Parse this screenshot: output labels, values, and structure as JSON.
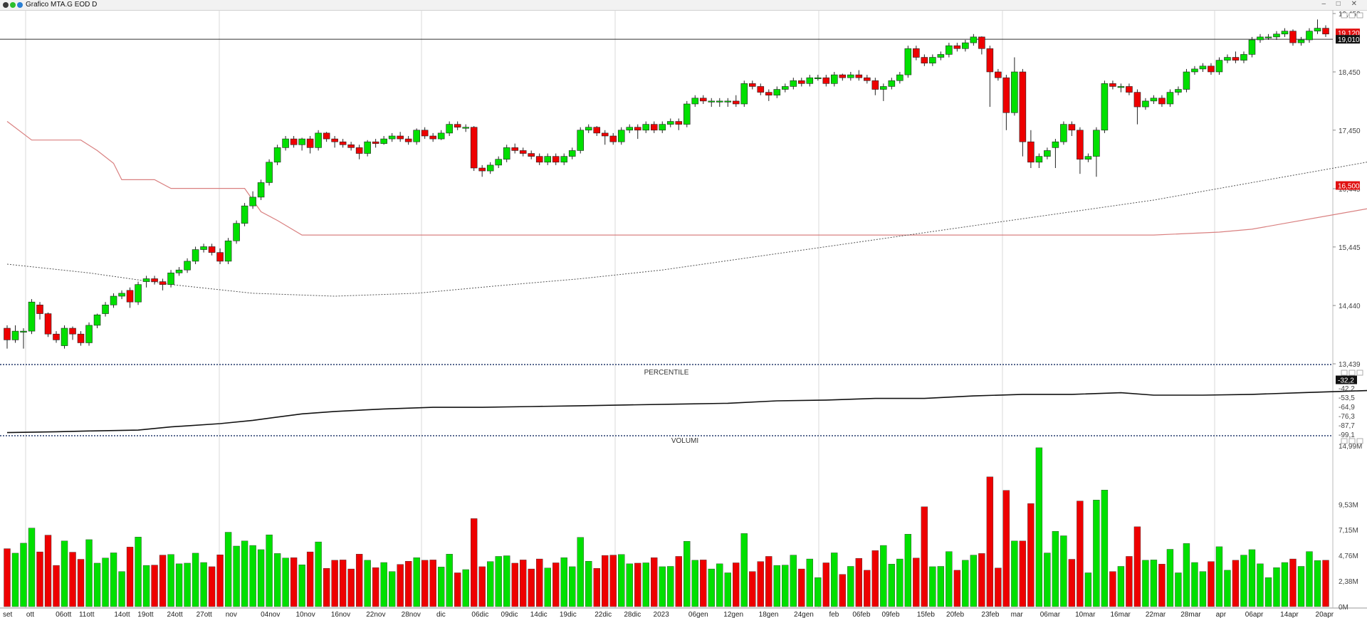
{
  "window": {
    "title": "Grafico MTA.G EOD D",
    "controls": [
      "–",
      "□",
      "✕"
    ]
  },
  "colors": {
    "up": "#00e000",
    "down": "#ee0000",
    "axis_text": "#444444",
    "level_line": "#d98080",
    "avg_line": "#555555"
  },
  "price_axis": {
    "ticks": [
      "19,452",
      "18,450",
      "17,450",
      "16,445",
      "15,445",
      "14,440",
      "13,439"
    ]
  },
  "price_labels": {
    "last": "19,120",
    "ref": "19,010",
    "stop": "16,500"
  },
  "chart_data": [
    {
      "type": "candlestick",
      "ylim": [
        13439,
        19452
      ],
      "x_labels": [
        "set",
        "ott",
        "06ott",
        "11ott",
        "14ott",
        "19ott",
        "24ott",
        "27ott",
        "nov",
        "04nov",
        "10nov",
        "16nov",
        "22nov",
        "28nov",
        "dic",
        "06dic",
        "09dic",
        "14dic",
        "19dic",
        "22dic",
        "28dic",
        "2023",
        "06gen",
        "12gen",
        "18gen",
        "24gen",
        "feb",
        "06feb",
        "09feb",
        "15feb",
        "20feb",
        "23feb",
        "mar",
        "06mar",
        "10mar",
        "16mar",
        "22mar",
        "28mar",
        "apr",
        "06apr",
        "14apr",
        "20apr"
      ],
      "candles": [
        [
          14050,
          13850,
          14100,
          13700
        ],
        [
          13850,
          14000,
          14100,
          13800
        ],
        [
          14000,
          14000,
          14050,
          13700
        ],
        [
          14000,
          14500,
          14550,
          13950
        ],
        [
          14450,
          14300,
          14500,
          14200
        ],
        [
          14300,
          13950,
          14320,
          13900
        ],
        [
          13950,
          13850,
          14000,
          13800
        ],
        [
          13750,
          14050,
          14100,
          13700
        ],
        [
          14050,
          13950,
          14080,
          13850
        ],
        [
          13950,
          13800,
          14000,
          13750
        ],
        [
          13800,
          14100,
          14150,
          13750
        ],
        [
          14100,
          14280,
          14300,
          14050
        ],
        [
          14300,
          14450,
          14500,
          14250
        ],
        [
          14450,
          14600,
          14650,
          14400
        ],
        [
          14600,
          14650,
          14700,
          14550
        ],
        [
          14700,
          14500,
          14750,
          14400
        ],
        [
          14500,
          14800,
          14850,
          14450
        ],
        [
          14850,
          14900,
          14950,
          14750
        ],
        [
          14900,
          14850,
          14950,
          14800
        ],
        [
          14850,
          14800,
          14900,
          14700
        ],
        [
          14800,
          15000,
          15050,
          14750
        ],
        [
          15000,
          15050,
          15100,
          14950
        ],
        [
          15050,
          15200,
          15250,
          15000
        ],
        [
          15200,
          15400,
          15450,
          15150
        ],
        [
          15400,
          15450,
          15500,
          15350
        ],
        [
          15450,
          15350,
          15500,
          15300
        ],
        [
          15350,
          15200,
          15420,
          15150
        ],
        [
          15200,
          15550,
          15600,
          15150
        ],
        [
          15550,
          15850,
          15900,
          15500
        ],
        [
          15850,
          16150,
          16200,
          15800
        ],
        [
          16150,
          16300,
          16400,
          16100
        ],
        [
          16300,
          16550,
          16600,
          16250
        ],
        [
          16550,
          16900,
          16950,
          16500
        ],
        [
          16900,
          17150,
          17200,
          16850
        ],
        [
          17150,
          17300,
          17350,
          17100
        ],
        [
          17300,
          17200,
          17350,
          17150
        ],
        [
          17200,
          17300,
          17320,
          17100
        ],
        [
          17300,
          17150,
          17350,
          17050
        ],
        [
          17150,
          17400,
          17450,
          17100
        ],
        [
          17400,
          17300,
          17420,
          17250
        ],
        [
          17300,
          17250,
          17350,
          17150
        ],
        [
          17250,
          17200,
          17300,
          17150
        ],
        [
          17200,
          17150,
          17250,
          17100
        ],
        [
          17150,
          17050,
          17200,
          16950
        ],
        [
          17050,
          17250,
          17280,
          17000
        ],
        [
          17250,
          17220,
          17300,
          17150
        ],
        [
          17220,
          17300,
          17350,
          17200
        ],
        [
          17300,
          17350,
          17400,
          17250
        ],
        [
          17350,
          17300,
          17420,
          17250
        ],
        [
          17300,
          17250,
          17350,
          17200
        ],
        [
          17250,
          17450,
          17480,
          17200
        ],
        [
          17450,
          17350,
          17500,
          17300
        ],
        [
          17350,
          17300,
          17400,
          17250
        ],
        [
          17300,
          17400,
          17450,
          17280
        ],
        [
          17400,
          17550,
          17600,
          17350
        ],
        [
          17550,
          17500,
          17600,
          17450
        ],
        [
          17500,
          17500,
          17550,
          17420
        ],
        [
          17500,
          16800,
          17520,
          16750
        ],
        [
          16800,
          16750,
          16850,
          16650
        ],
        [
          16750,
          16850,
          16900,
          16700
        ],
        [
          16850,
          16950,
          17000,
          16800
        ],
        [
          16950,
          17150,
          17200,
          16900
        ],
        [
          17150,
          17100,
          17220,
          17050
        ],
        [
          17100,
          17050,
          17150,
          17000
        ],
        [
          17050,
          17000,
          17100,
          16950
        ],
        [
          17000,
          16900,
          17050,
          16850
        ],
        [
          16900,
          17000,
          17050,
          16850
        ],
        [
          17000,
          16900,
          17050,
          16850
        ],
        [
          16900,
          17000,
          17050,
          16850
        ],
        [
          17000,
          17100,
          17150,
          16950
        ],
        [
          17100,
          17450,
          17500,
          17050
        ],
        [
          17450,
          17500,
          17550,
          17400
        ],
        [
          17500,
          17400,
          17520,
          17350
        ],
        [
          17400,
          17350,
          17450,
          17200
        ],
        [
          17350,
          17250,
          17400,
          17200
        ],
        [
          17250,
          17450,
          17500,
          17200
        ],
        [
          17450,
          17500,
          17550,
          17400
        ],
        [
          17500,
          17450,
          17550,
          17300
        ],
        [
          17450,
          17550,
          17600,
          17400
        ],
        [
          17550,
          17450,
          17600,
          17400
        ],
        [
          17450,
          17550,
          17600,
          17400
        ],
        [
          17550,
          17600,
          17650,
          17500
        ],
        [
          17600,
          17550,
          17650,
          17450
        ],
        [
          17550,
          17900,
          17950,
          17500
        ],
        [
          17900,
          18000,
          18050,
          17850
        ],
        [
          18000,
          17950,
          18050,
          17900
        ],
        [
          17950,
          17950,
          18000,
          17850
        ],
        [
          17950,
          17950,
          18000,
          17850
        ],
        [
          17950,
          17950,
          18000,
          17850
        ],
        [
          17950,
          17900,
          18050,
          17850
        ],
        [
          17900,
          18250,
          18300,
          17850
        ],
        [
          18250,
          18200,
          18300,
          18150
        ],
        [
          18200,
          18100,
          18250,
          18050
        ],
        [
          18100,
          18050,
          18150,
          17950
        ],
        [
          18050,
          18150,
          18200,
          18000
        ],
        [
          18150,
          18200,
          18250,
          18100
        ],
        [
          18200,
          18300,
          18350,
          18150
        ],
        [
          18300,
          18250,
          18350,
          18200
        ],
        [
          18250,
          18350,
          18400,
          18200
        ],
        [
          18350,
          18350,
          18400,
          18300
        ],
        [
          18350,
          18250,
          18400,
          18200
        ],
        [
          18250,
          18400,
          18450,
          18200
        ],
        [
          18400,
          18350,
          18420,
          18300
        ],
        [
          18350,
          18400,
          18450,
          18300
        ],
        [
          18400,
          18350,
          18480,
          18300
        ],
        [
          18350,
          18300,
          18400,
          18250
        ],
        [
          18300,
          18150,
          18350,
          18050
        ],
        [
          18150,
          18200,
          18250,
          17950
        ],
        [
          18200,
          18300,
          18350,
          18150
        ],
        [
          18300,
          18400,
          18450,
          18250
        ],
        [
          18400,
          18850,
          18900,
          18350
        ],
        [
          18850,
          18700,
          18900,
          18650
        ],
        [
          18700,
          18600,
          18750,
          18550
        ],
        [
          18600,
          18700,
          18750,
          18550
        ],
        [
          18700,
          18750,
          18800,
          18650
        ],
        [
          18750,
          18900,
          18950,
          18700
        ],
        [
          18900,
          18850,
          18950,
          18800
        ],
        [
          18850,
          18950,
          19000,
          18800
        ],
        [
          18950,
          19050,
          19100,
          18900
        ],
        [
          19050,
          18850,
          19060,
          18750
        ],
        [
          18850,
          18450,
          18900,
          17850
        ],
        [
          18450,
          18350,
          18500,
          18300
        ],
        [
          18350,
          17750,
          18400,
          17450
        ],
        [
          17750,
          18450,
          18700,
          17700
        ],
        [
          18450,
          17250,
          18500,
          17000
        ],
        [
          17250,
          16900,
          17450,
          16800
        ],
        [
          16900,
          17000,
          17050,
          16800
        ],
        [
          17000,
          17100,
          17150,
          16950
        ],
        [
          17150,
          17250,
          17300,
          16800
        ],
        [
          17250,
          17550,
          17600,
          17200
        ],
        [
          17550,
          17450,
          17600,
          17350
        ],
        [
          17450,
          16950,
          17500,
          16700
        ],
        [
          16950,
          17000,
          17050,
          16900
        ],
        [
          17000,
          17450,
          17500,
          16650
        ],
        [
          17450,
          18250,
          18300,
          17400
        ],
        [
          18250,
          18200,
          18300,
          18150
        ],
        [
          18200,
          18200,
          18250,
          18100
        ],
        [
          18200,
          18100,
          18250,
          18050
        ],
        [
          18100,
          17850,
          18150,
          17550
        ],
        [
          17850,
          17950,
          18000,
          17800
        ],
        [
          17950,
          18000,
          18050,
          17900
        ],
        [
          18000,
          17900,
          18050,
          17850
        ],
        [
          17900,
          18100,
          18150,
          17850
        ],
        [
          18100,
          18150,
          18200,
          18050
        ],
        [
          18150,
          18450,
          18500,
          18100
        ],
        [
          18450,
          18500,
          18550,
          18400
        ],
        [
          18500,
          18550,
          18600,
          18450
        ],
        [
          18550,
          18450,
          18600,
          18400
        ],
        [
          18450,
          18650,
          18700,
          18400
        ],
        [
          18650,
          18700,
          18750,
          18600
        ],
        [
          18700,
          18650,
          18800,
          18600
        ],
        [
          18650,
          18750,
          18800,
          18600
        ],
        [
          18750,
          19000,
          19050,
          18700
        ],
        [
          19000,
          19050,
          19100,
          18950
        ],
        [
          19050,
          19050,
          19100,
          19000
        ],
        [
          19050,
          19100,
          19150,
          19000
        ],
        [
          19100,
          19150,
          19200,
          19050
        ],
        [
          19150,
          18950,
          19180,
          18900
        ],
        [
          18950,
          19000,
          19050,
          18900
        ],
        [
          19000,
          19150,
          19200,
          18950
        ],
        [
          19150,
          19200,
          19350,
          19100
        ],
        [
          19200,
          19100,
          19250,
          19050
        ]
      ],
      "level_line": [
        [
          0,
          17600
        ],
        [
          3,
          17280
        ],
        [
          9,
          17280
        ],
        [
          11,
          17100
        ],
        [
          13,
          16880
        ],
        [
          14,
          16600
        ],
        [
          18,
          16600
        ],
        [
          20,
          16450
        ],
        [
          29,
          16450
        ],
        [
          31,
          16050
        ],
        [
          33,
          15900
        ],
        [
          36,
          15650
        ],
        [
          70,
          15650
        ],
        [
          76,
          15650
        ],
        [
          140,
          15650
        ],
        [
          148,
          15700
        ],
        [
          152,
          15750
        ],
        [
          156,
          15850
        ],
        [
          162,
          16000
        ],
        [
          168,
          16150
        ],
        [
          173,
          16250
        ],
        [
          180,
          16500
        ],
        [
          186,
          16500
        ]
      ],
      "avg_line": [
        [
          0,
          15150
        ],
        [
          10,
          15000
        ],
        [
          20,
          14800
        ],
        [
          30,
          14650
        ],
        [
          40,
          14600
        ],
        [
          50,
          14650
        ],
        [
          60,
          14780
        ],
        [
          70,
          14900
        ],
        [
          80,
          15050
        ],
        [
          90,
          15250
        ],
        [
          100,
          15450
        ],
        [
          110,
          15650
        ],
        [
          120,
          15850
        ],
        [
          130,
          16050
        ],
        [
          140,
          16250
        ],
        [
          150,
          16500
        ],
        [
          160,
          16750
        ],
        [
          170,
          17000
        ],
        [
          180,
          17250
        ],
        [
          186,
          17450
        ]
      ]
    },
    {
      "type": "line",
      "title": "PERCENTILE",
      "ylim": [
        -100,
        -30
      ],
      "y_ticks": [
        "-42,2",
        "-53,5",
        "-64,9",
        "-76,3",
        "-87,7",
        "-99,1"
      ],
      "last_value": "-32,2",
      "x": [
        0,
        6,
        10,
        16,
        20,
        26,
        30,
        36,
        40,
        46,
        52,
        58,
        64,
        70,
        76,
        82,
        88,
        94,
        100,
        106,
        112,
        118,
        124,
        130,
        136,
        140,
        146,
        152,
        158,
        164,
        170,
        174,
        178,
        182,
        186
      ],
      "values": [
        -97,
        -96,
        -95,
        -94,
        -90,
        -86,
        -82,
        -74,
        -71,
        -68,
        -66,
        -66,
        -65,
        -64,
        -63,
        -62,
        -61,
        -58,
        -57,
        -55,
        -55,
        -52,
        -50,
        -50,
        -48,
        -51,
        -51,
        -50,
        -48,
        -46,
        -44,
        -40,
        -38,
        -33,
        -32
      ]
    },
    {
      "type": "bar",
      "title": "VOLUMI",
      "ylim": [
        0,
        14990000
      ],
      "y_ticks": [
        "14,99M",
        "9,53M",
        "7,15M",
        "4,76M",
        "2,38M",
        "0M"
      ],
      "note": "daily volume bars colored by candle direction"
    }
  ],
  "x_axis_labels_display": [
    "set",
    "ott",
    "06ott",
    "11ott",
    "14ott",
    "19ott",
    "24ott",
    "27ott",
    "nov",
    "04nov",
    "10nov",
    "16nov",
    "22nov",
    "28nov",
    "dic",
    "06dic",
    "09dic",
    "14dic",
    "19dic",
    "22dic",
    "28dic",
    "2023",
    "06gen",
    "12gen",
    "18gen",
    "24gen",
    "feb",
    "06feb",
    "09feb",
    "15feb",
    "20feb",
    "23feb",
    "mar",
    "06mar",
    "10mar",
    "16mar",
    "22mar",
    "28mar",
    "apr",
    "06apr",
    "14apr",
    "20apr"
  ]
}
